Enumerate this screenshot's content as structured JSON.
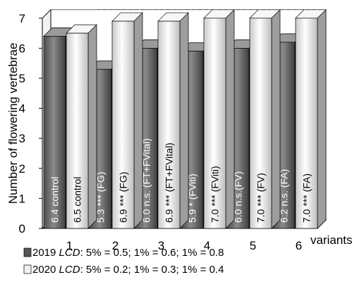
{
  "chart_data": {
    "type": "bar",
    "categories": [
      "1",
      "2",
      "3",
      "4",
      "5",
      "6"
    ],
    "xlabel": "variants",
    "ylabel": "Number of flowering vertebrae",
    "ylim": [
      0,
      7
    ],
    "yticks": [
      "0",
      "1",
      "2",
      "3",
      "4",
      "5",
      "6",
      "7"
    ],
    "grid": "dashed, on selected categories",
    "legend_position": "bottom",
    "series": [
      {
        "name": "2019",
        "legend_suffix": ": 5% = 0.5; 1% = 0.6; 1% = 0.8",
        "legend_italic": "LCD",
        "color": "#6a6a6a",
        "values": [
          6.4,
          5.3,
          6.0,
          5.9,
          6.0,
          6.2
        ],
        "labels": [
          "6.4 control",
          "5.3 *** (FG)",
          "6.0 n.s. (FT+FVital)",
          "5.9 * (FViti)",
          "6.0 n.s.(FV)",
          "6.2 n.s. (FA)"
        ]
      },
      {
        "name": "2020",
        "legend_suffix": ": 5% = 0.2; 1% = 0.3; 1% = 0.4",
        "legend_italic": "LCD",
        "color": "#e8e8e8",
        "values": [
          6.5,
          6.9,
          6.9,
          7.0,
          7.0,
          7.0
        ],
        "labels": [
          "6.5 control",
          "6.9 *** (FG)",
          "6.9 *** (FT+FVital)",
          "7.0 *** (FViti)",
          "7.0 *** (FV)",
          "7.0 *** (FA)"
        ]
      }
    ]
  }
}
